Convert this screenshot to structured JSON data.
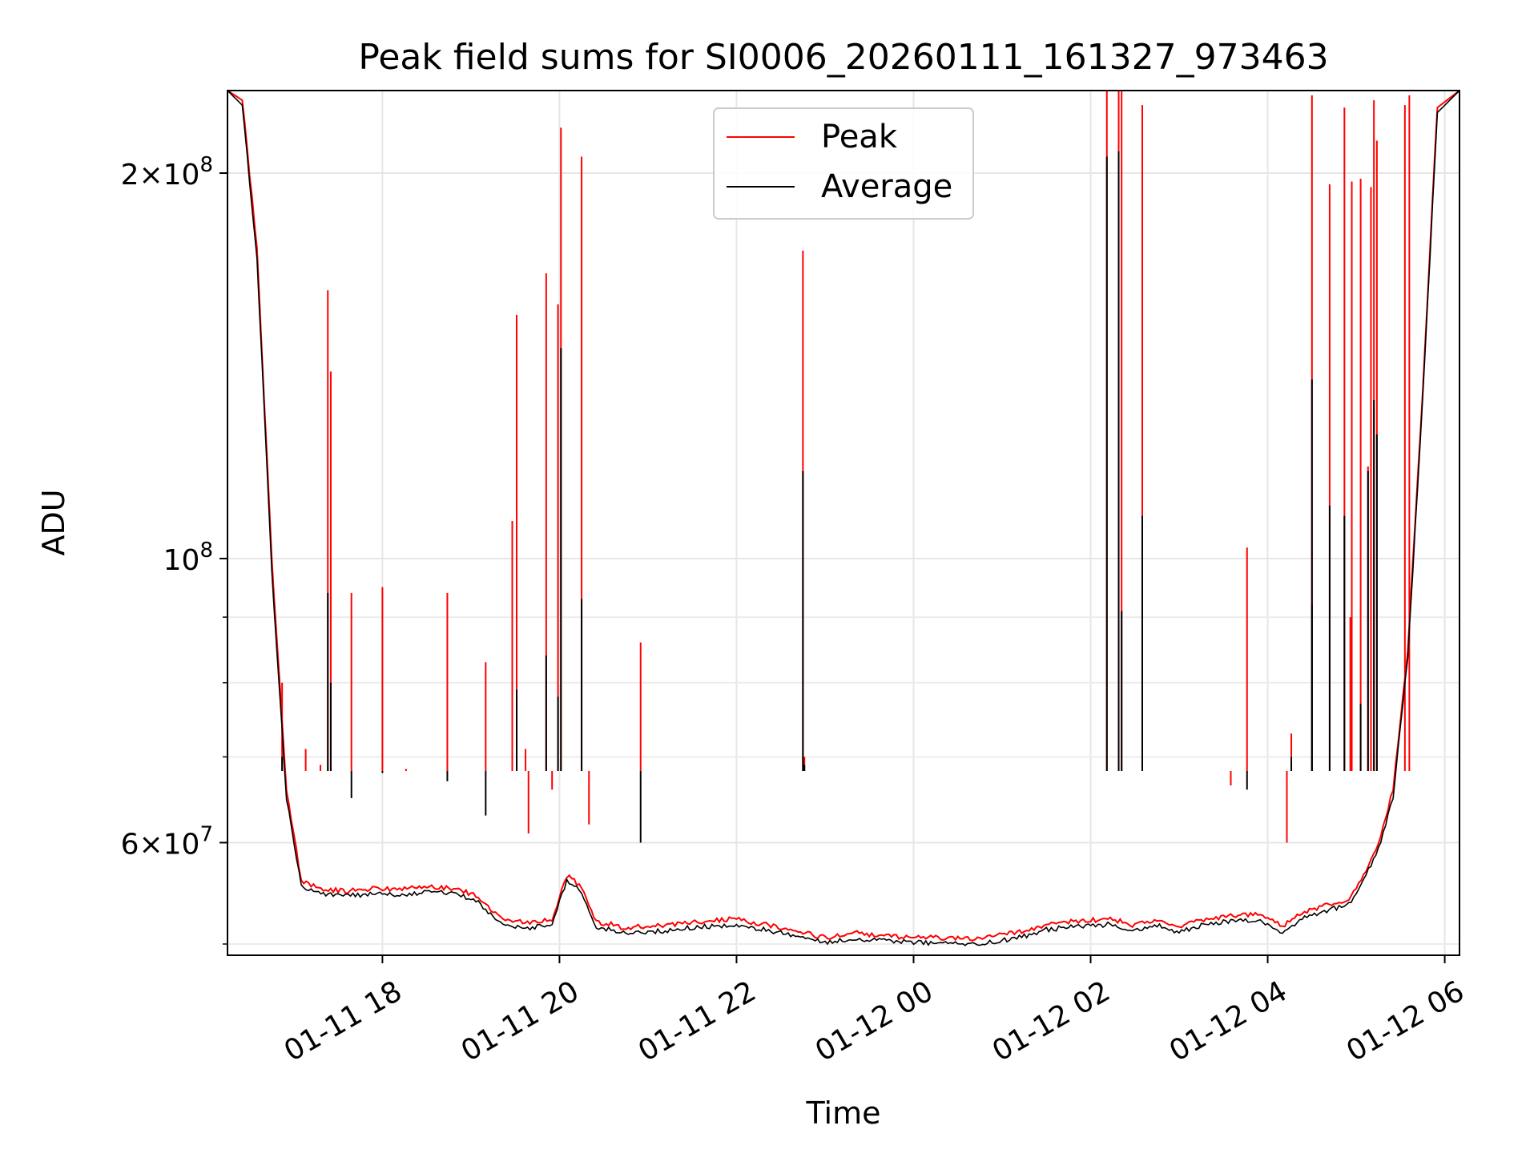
{
  "chart_data": {
    "type": "line",
    "title": "Peak field sums for SI0006_20260111_161327_973463",
    "xlabel": "Time",
    "ylabel": "ADU",
    "yscale": "log",
    "xlim": [
      "2026-01-11T16:15",
      "2026-01-12T06:10"
    ],
    "ylim": [
      49000000,
      232000000
    ],
    "grid": true,
    "legend": {
      "placement": "top-center",
      "entries": [
        "Peak",
        "Average"
      ]
    },
    "x_ticks": [
      {
        "value": "2026-01-11T18:00",
        "label": "01-11 18"
      },
      {
        "value": "2026-01-11T20:00",
        "label": "01-11 20"
      },
      {
        "value": "2026-01-11T22:00",
        "label": "01-11 22"
      },
      {
        "value": "2026-01-12T00:00",
        "label": "01-12 00"
      },
      {
        "value": "2026-01-12T02:00",
        "label": "01-12 02"
      },
      {
        "value": "2026-01-12T04:00",
        "label": "01-12 04"
      },
      {
        "value": "2026-01-12T06:00",
        "label": "01-12 06"
      }
    ],
    "y_ticks": [
      {
        "value": 200000000,
        "base": "2",
        "exp": "8",
        "mult": true
      },
      {
        "value": 100000000,
        "base": "",
        "exp": "8",
        "mult": false
      },
      {
        "value": 60000000,
        "base": "6",
        "exp": "7",
        "mult": true
      }
    ],
    "y_minor_ticks": [
      50000000,
      70000000,
      80000000,
      90000000
    ],
    "series": [
      {
        "name": "Peak",
        "color": "#ff0000",
        "x": [
          "2026-01-11T16:15",
          "2026-01-11T16:25",
          "2026-01-11T16:35",
          "2026-01-11T16:45",
          "2026-01-11T16:55",
          "2026-01-11T17:05",
          "2026-01-11T17:20",
          "2026-01-11T17:35",
          "2026-01-11T17:50",
          "2026-01-11T18:10",
          "2026-01-11T18:40",
          "2026-01-11T18:55",
          "2026-01-11T19:05",
          "2026-01-11T19:15",
          "2026-01-11T19:25",
          "2026-01-11T19:40",
          "2026-01-11T19:55",
          "2026-01-11T20:05",
          "2026-01-11T20:15",
          "2026-01-11T20:25",
          "2026-01-11T20:35",
          "2026-01-11T20:45",
          "2026-01-11T20:55",
          "2026-01-11T21:10",
          "2026-01-11T21:30",
          "2026-01-11T22:00",
          "2026-01-11T22:30",
          "2026-01-11T22:45",
          "2026-01-11T23:00",
          "2026-01-11T23:20",
          "2026-01-11T23:45",
          "2026-01-12T00:10",
          "2026-01-12T00:40",
          "2026-01-12T01:00",
          "2026-01-12T01:15",
          "2026-01-12T01:30",
          "2026-01-12T01:50",
          "2026-01-12T02:15",
          "2026-01-12T02:30",
          "2026-01-12T02:45",
          "2026-01-12T03:00",
          "2026-01-12T03:20",
          "2026-01-12T03:40",
          "2026-01-12T03:55",
          "2026-01-12T04:10",
          "2026-01-12T04:25",
          "2026-01-12T04:40",
          "2026-01-12T04:55",
          "2026-01-12T05:05",
          "2026-01-12T05:15",
          "2026-01-12T05:25",
          "2026-01-12T05:35",
          "2026-01-12T05:45",
          "2026-01-12T05:55",
          "2026-01-12T06:10"
        ],
        "y": [
          232000000,
          228000000,
          175000000,
          100000000,
          66000000,
          56000000,
          55200000,
          55000000,
          55200000,
          55200000,
          55400000,
          55000000,
          54400000,
          53000000,
          52200000,
          52000000,
          52300000,
          56500000,
          55500000,
          52000000,
          51800000,
          51400000,
          51600000,
          51700000,
          52000000,
          52300000,
          51500000,
          51000000,
          50600000,
          51000000,
          50700000,
          50600000,
          50500000,
          50800000,
          51200000,
          51800000,
          52100000,
          52300000,
          51700000,
          52200000,
          51600000,
          52400000,
          52600000,
          52700000,
          51600000,
          53000000,
          53600000,
          54200000,
          56500000,
          60000000,
          66000000,
          85000000,
          135000000,
          225000000,
          232000000
        ],
        "spikes": [
          {
            "x": "2026-01-11T16:52",
            "y": 80000000
          },
          {
            "x": "2026-01-11T17:08",
            "y": 71000000
          },
          {
            "x": "2026-01-11T17:18",
            "y": 69000000
          },
          {
            "x": "2026-01-11T17:23",
            "y": 162000000
          },
          {
            "x": "2026-01-11T17:25",
            "y": 140000000
          },
          {
            "x": "2026-01-11T17:39",
            "y": 94000000
          },
          {
            "x": "2026-01-11T18:00",
            "y": 95000000
          },
          {
            "x": "2026-01-11T18:16",
            "y": 68500000
          },
          {
            "x": "2026-01-11T18:44",
            "y": 94000000
          },
          {
            "x": "2026-01-11T19:10",
            "y": 83000000
          },
          {
            "x": "2026-01-11T19:28",
            "y": 107000000
          },
          {
            "x": "2026-01-11T19:31",
            "y": 155000000
          },
          {
            "x": "2026-01-11T19:37",
            "y": 71000000
          },
          {
            "x": "2026-01-11T19:39",
            "y": 61000000
          },
          {
            "x": "2026-01-11T19:51",
            "y": 167000000
          },
          {
            "x": "2026-01-11T19:55",
            "y": 66000000
          },
          {
            "x": "2026-01-11T19:59",
            "y": 158000000
          },
          {
            "x": "2026-01-11T20:01",
            "y": 217000000
          },
          {
            "x": "2026-01-11T20:15",
            "y": 206000000
          },
          {
            "x": "2026-01-11T20:20",
            "y": 62000000
          },
          {
            "x": "2026-01-11T20:55",
            "y": 86000000
          },
          {
            "x": "2026-01-11T22:45",
            "y": 174000000
          },
          {
            "x": "2026-01-11T22:46",
            "y": 70000000
          },
          {
            "x": "2026-01-12T02:11",
            "y": 232000000
          },
          {
            "x": "2026-01-12T02:19",
            "y": 232000000
          },
          {
            "x": "2026-01-12T02:21",
            "y": 232000000
          },
          {
            "x": "2026-01-12T02:35",
            "y": 226000000
          },
          {
            "x": "2026-01-12T03:35",
            "y": 66500000
          },
          {
            "x": "2026-01-12T03:46",
            "y": 102000000
          },
          {
            "x": "2026-01-12T04:13",
            "y": 60000000
          },
          {
            "x": "2026-01-12T04:16",
            "y": 73000000
          },
          {
            "x": "2026-01-12T04:30",
            "y": 230000000
          },
          {
            "x": "2026-01-12T04:42",
            "y": 196000000
          },
          {
            "x": "2026-01-12T04:52",
            "y": 225000000
          },
          {
            "x": "2026-01-12T04:56",
            "y": 90000000
          },
          {
            "x": "2026-01-12T04:57",
            "y": 197000000
          },
          {
            "x": "2026-01-12T05:03",
            "y": 198000000
          },
          {
            "x": "2026-01-12T05:08",
            "y": 118000000
          },
          {
            "x": "2026-01-12T05:10",
            "y": 195000000
          },
          {
            "x": "2026-01-12T05:12",
            "y": 228000000
          },
          {
            "x": "2026-01-12T05:14",
            "y": 212000000
          },
          {
            "x": "2026-01-12T05:33",
            "y": 226000000
          },
          {
            "x": "2026-01-12T05:36",
            "y": 230000000
          }
        ]
      },
      {
        "name": "Average",
        "color": "#000000",
        "x": [
          "2026-01-11T16:15",
          "2026-01-11T16:25",
          "2026-01-11T16:35",
          "2026-01-11T16:45",
          "2026-01-11T16:55",
          "2026-01-11T17:05",
          "2026-01-11T17:20",
          "2026-01-11T17:35",
          "2026-01-11T17:50",
          "2026-01-11T18:10",
          "2026-01-11T18:40",
          "2026-01-11T18:55",
          "2026-01-11T19:05",
          "2026-01-11T19:15",
          "2026-01-11T19:25",
          "2026-01-11T19:40",
          "2026-01-11T19:55",
          "2026-01-11T20:05",
          "2026-01-11T20:15",
          "2026-01-11T20:25",
          "2026-01-11T20:35",
          "2026-01-11T20:45",
          "2026-01-11T20:55",
          "2026-01-11T21:10",
          "2026-01-11T21:30",
          "2026-01-11T22:00",
          "2026-01-11T22:30",
          "2026-01-11T22:45",
          "2026-01-11T23:00",
          "2026-01-11T23:20",
          "2026-01-11T23:45",
          "2026-01-12T00:10",
          "2026-01-12T00:40",
          "2026-01-12T01:00",
          "2026-01-12T01:15",
          "2026-01-12T01:30",
          "2026-01-12T01:50",
          "2026-01-12T02:15",
          "2026-01-12T02:30",
          "2026-01-12T02:45",
          "2026-01-12T03:00",
          "2026-01-12T03:20",
          "2026-01-12T03:40",
          "2026-01-12T03:55",
          "2026-01-12T04:10",
          "2026-01-12T04:25",
          "2026-01-12T04:40",
          "2026-01-12T04:55",
          "2026-01-12T05:05",
          "2026-01-12T05:15",
          "2026-01-12T05:25",
          "2026-01-12T05:35",
          "2026-01-12T05:45",
          "2026-01-12T05:55",
          "2026-01-12T06:10"
        ],
        "y": [
          232000000,
          226000000,
          172000000,
          98000000,
          65000000,
          55500000,
          54700000,
          54500000,
          54700000,
          54700000,
          54900000,
          54500000,
          53900000,
          52500000,
          51700000,
          51500000,
          51800000,
          56000000,
          55000000,
          51500000,
          51300000,
          50900000,
          51100000,
          51200000,
          51500000,
          51800000,
          51000000,
          50500000,
          50100000,
          50500000,
          50200000,
          50100000,
          50000000,
          50300000,
          50700000,
          51300000,
          51600000,
          51800000,
          51200000,
          51700000,
          51100000,
          51900000,
          52100000,
          52200000,
          51100000,
          52500000,
          53100000,
          53700000,
          56000000,
          59300000,
          65000000,
          84000000,
          133000000,
          223000000,
          232000000
        ],
        "spikes": [
          {
            "x": "2026-01-11T16:52",
            "y": 70000000
          },
          {
            "x": "2026-01-11T17:23",
            "y": 94000000
          },
          {
            "x": "2026-01-11T17:25",
            "y": 80000000
          },
          {
            "x": "2026-01-11T17:39",
            "y": 65000000
          },
          {
            "x": "2026-01-11T18:00",
            "y": 68000000
          },
          {
            "x": "2026-01-11T18:44",
            "y": 67000000
          },
          {
            "x": "2026-01-11T19:10",
            "y": 63000000
          },
          {
            "x": "2026-01-11T19:31",
            "y": 79000000
          },
          {
            "x": "2026-01-11T19:51",
            "y": 84000000
          },
          {
            "x": "2026-01-11T19:59",
            "y": 78000000
          },
          {
            "x": "2026-01-11T20:01",
            "y": 146000000
          },
          {
            "x": "2026-01-11T20:15",
            "y": 93000000
          },
          {
            "x": "2026-01-11T20:55",
            "y": 60000000
          },
          {
            "x": "2026-01-11T22:45",
            "y": 117000000
          },
          {
            "x": "2026-01-11T22:46",
            "y": 69000000
          },
          {
            "x": "2026-01-12T02:11",
            "y": 206000000
          },
          {
            "x": "2026-01-12T02:19",
            "y": 208000000
          },
          {
            "x": "2026-01-12T02:21",
            "y": 91000000
          },
          {
            "x": "2026-01-12T02:35",
            "y": 108000000
          },
          {
            "x": "2026-01-12T03:46",
            "y": 66000000
          },
          {
            "x": "2026-01-12T04:16",
            "y": 70000000
          },
          {
            "x": "2026-01-12T04:30",
            "y": 92000000
          },
          {
            "x": "2026-01-12T04:30",
            "y": 138000000
          },
          {
            "x": "2026-01-12T04:42",
            "y": 110000000
          },
          {
            "x": "2026-01-12T04:52",
            "y": 108000000
          },
          {
            "x": "2026-01-12T05:03",
            "y": 77000000
          },
          {
            "x": "2026-01-12T05:08",
            "y": 117000000
          },
          {
            "x": "2026-01-12T05:12",
            "y": 133000000
          },
          {
            "x": "2026-01-12T05:14",
            "y": 125000000
          }
        ]
      }
    ]
  }
}
